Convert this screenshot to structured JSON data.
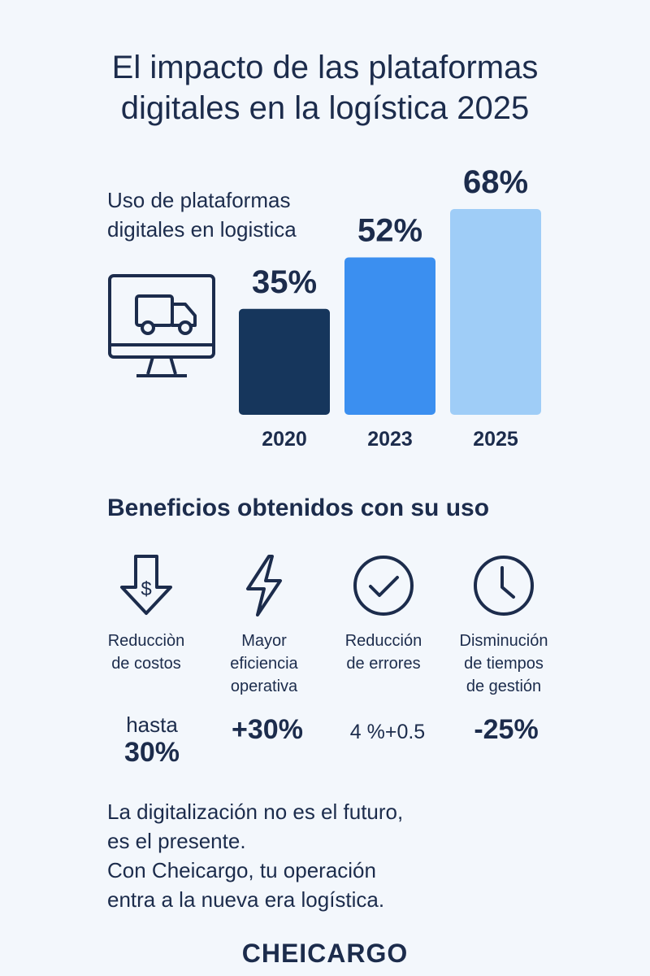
{
  "title_lines": [
    "El impacto de las plataformas",
    "digitales en la logística 2025"
  ],
  "chart_data": {
    "type": "bar",
    "title": "Uso de plataformas digitales en logistica",
    "title_lines": [
      "Uso de plataformas",
      "digitales en logistica"
    ],
    "categories": [
      "2020",
      "2023",
      "2025"
    ],
    "values": [
      35,
      52,
      68
    ],
    "value_labels": [
      "35%",
      "52%",
      "68%"
    ],
    "ylim": [
      0,
      68
    ],
    "colors": [
      "#16365c",
      "#3b8ff0",
      "#9fcdf7"
    ],
    "grid": false,
    "legend": "none"
  },
  "icons": {
    "chart": "monitor-truck-icon"
  },
  "benefits": {
    "title": "Beneficios obtenidos con su uso",
    "items": [
      {
        "icon": "cost-down-arrow-icon",
        "label_lines": [
          "Reducciòn",
          "de costos"
        ],
        "value_pre": "hasta",
        "value": "30%"
      },
      {
        "icon": "lightning-icon",
        "label_lines": [
          "Mayor",
          "eficiencia",
          "operativa"
        ],
        "value_pre": "",
        "value": "+30%"
      },
      {
        "icon": "check-circle-icon",
        "label_lines": [
          "Reducción",
          "de errores"
        ],
        "value_pre": "",
        "value": "4 %+0.5"
      },
      {
        "icon": "clock-icon",
        "label_lines": [
          "Disminución",
          "de tiempos",
          "de gestión"
        ],
        "value_pre": "",
        "value": "-25%"
      }
    ]
  },
  "closing_lines": [
    "La digitalización no es el futuro,",
    "es el presente.",
    "Con Cheicargo, tu operación",
    "entra a la nueva era logística."
  ],
  "brand": "CHEICARGO"
}
